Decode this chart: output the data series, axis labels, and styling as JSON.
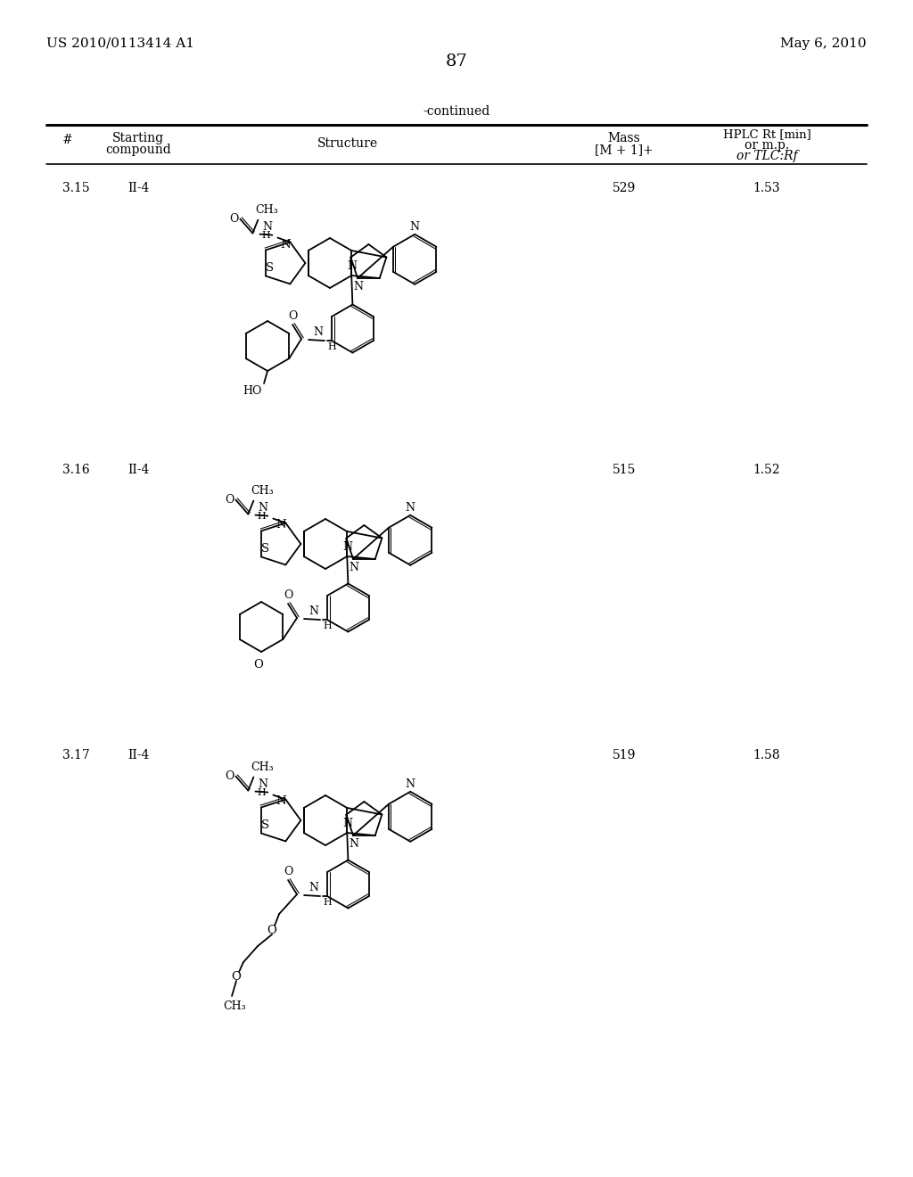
{
  "bg": "#ffffff",
  "header_left": "US 2010/0113414 A1",
  "header_right": "May 6, 2010",
  "page_num": "87",
  "continued": "-continued",
  "col_hash": "#",
  "col_start1": "Starting",
  "col_start2": "compound",
  "col_struct": "Structure",
  "col_mass1": "Mass",
  "col_mass2": "[M + 1]+",
  "col_hplc1": "HPLC Rt [min]",
  "col_hplc2": "or m.p.",
  "col_hplc3": "or TLC:Rf",
  "rows": [
    {
      "num": "3.15",
      "start": "II-4",
      "mass": "529",
      "hplc": "1.53"
    },
    {
      "num": "3.16",
      "start": "II-4",
      "mass": "515",
      "hplc": "1.52"
    },
    {
      "num": "3.17",
      "start": "II-4",
      "mass": "519",
      "hplc": "1.58"
    }
  ]
}
